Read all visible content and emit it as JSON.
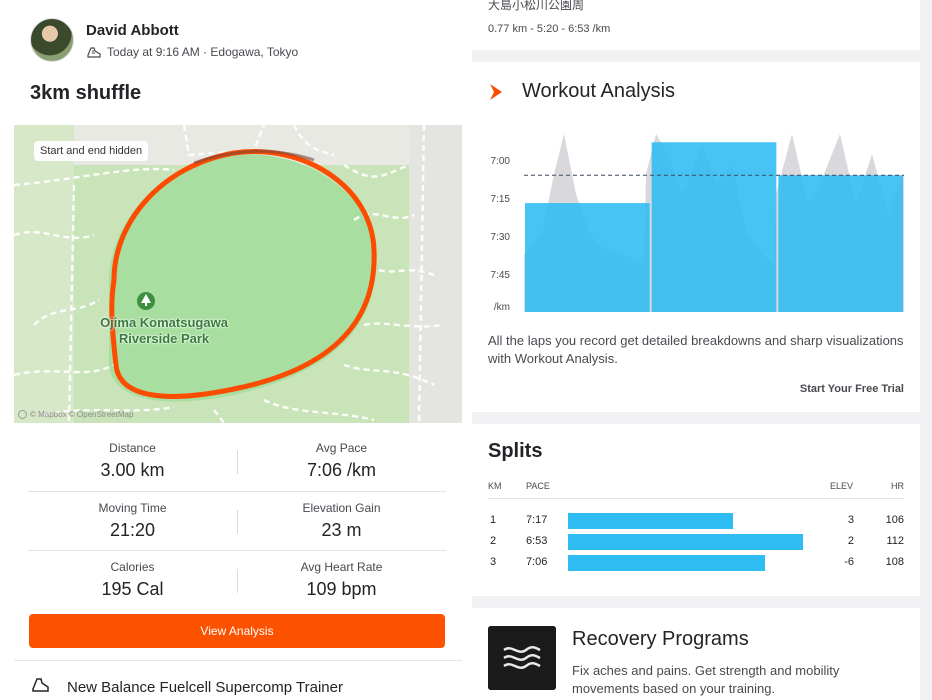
{
  "activity": {
    "athlete": "David Abbott",
    "timestamp": "Today at 9:16 AM · Edogawa, Tokyo",
    "title": "3km shuffle"
  },
  "map": {
    "chip": "Start and end hidden",
    "park_name": "Ojima Komatsugawa Riverside Park",
    "attribution": "© Mapbox © OpenStreetMap",
    "route_color": "#fc4c02",
    "park_color": "#a8dfa0"
  },
  "stats": [
    {
      "left_label": "Distance",
      "left_value": "3.00 km",
      "right_label": "Avg Pace",
      "right_value": "7:06 /km"
    },
    {
      "left_label": "Moving Time",
      "left_value": "21:20",
      "right_label": "Elevation Gain",
      "right_value": "23 m"
    },
    {
      "left_label": "Calories",
      "left_value": "195 Cal",
      "right_label": "Avg Heart Rate",
      "right_value": "109 bpm"
    }
  ],
  "view_analysis_label": "View Analysis",
  "gear": {
    "name": "New Balance Fuelcell Supercomp Trainer",
    "icon": "shoe-icon"
  },
  "top_card": {
    "cut_text": "大島小松川公園周",
    "sub": "0.77 km - 5:20 - 6:53 /km"
  },
  "workout_analysis": {
    "title": "Workout Analysis",
    "description": "All the laps you record get detailed breakdowns and sharp visualizations with Workout Analysis.",
    "cta": "Start Your Free Trial",
    "accent": "#fc4c02",
    "bar_color": "#2ebcf2"
  },
  "chart_data": {
    "type": "bar",
    "title": "Workout Analysis",
    "ylabel": "/km",
    "y_ticks": [
      "7:00",
      "7:15",
      "7:30",
      "7:45",
      "/km"
    ],
    "ylim": [
      "6:45",
      "8:00"
    ],
    "inverted_y": true,
    "laps": [
      {
        "lap": 1,
        "pace": "7:17",
        "pace_seconds": 437,
        "distance_km": 1.0
      },
      {
        "lap": 2,
        "pace": "6:53",
        "pace_seconds": 413,
        "distance_km": 1.0
      },
      {
        "lap": 3,
        "pace": "7:06",
        "pace_seconds": 426,
        "distance_km": 1.0
      }
    ],
    "avg_pace": "7:06",
    "avg_pace_seconds": 426
  },
  "splits": {
    "title": "Splits",
    "headers": {
      "km": "KM",
      "pace": "PACE",
      "elev": "ELEV",
      "hr": "HR"
    },
    "rows": [
      {
        "km": "1",
        "pace": "7:17",
        "elev": "3",
        "hr": "106",
        "bar_fraction": 0.7
      },
      {
        "km": "2",
        "pace": "6:53",
        "elev": "2",
        "hr": "112",
        "bar_fraction": 1.0
      },
      {
        "km": "3",
        "pace": "7:06",
        "elev": "-6",
        "hr": "108",
        "bar_fraction": 0.84
      }
    ]
  },
  "recovery": {
    "title": "Recovery Programs",
    "description": "Fix aches and pains. Get strength and mobility movements based on your training."
  }
}
